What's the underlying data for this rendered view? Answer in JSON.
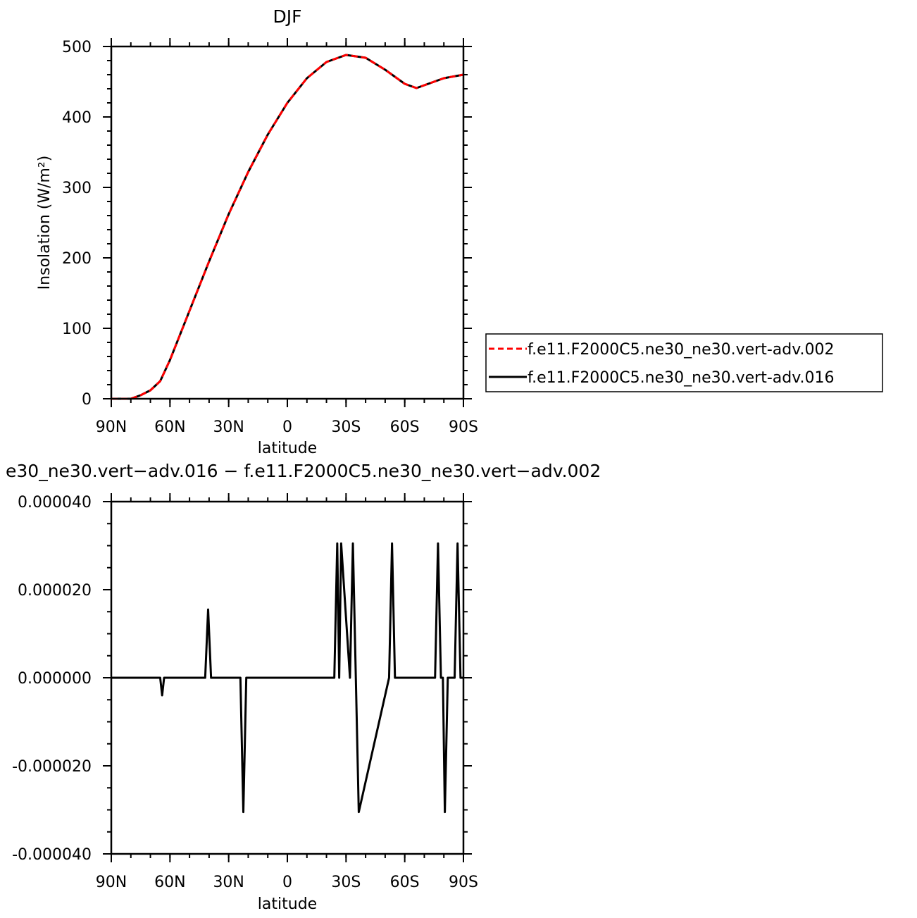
{
  "chart_data": [
    {
      "type": "line",
      "title": "DJF",
      "xlabel": "latitude",
      "ylabel": "Insolation  (W/m²)",
      "xlim": [
        -90,
        90
      ],
      "ylim": [
        0,
        500
      ],
      "xticks": [
        -90,
        -60,
        -30,
        0,
        30,
        60,
        90
      ],
      "xtick_labels": [
        "90N",
        "60N",
        "30N",
        "0",
        "30S",
        "60S",
        "90S"
      ],
      "yticks": [
        0,
        100,
        200,
        300,
        400,
        500
      ],
      "ytick_labels": [
        "0",
        "100",
        "200",
        "300",
        "400",
        "500"
      ],
      "legend": "right",
      "series": [
        {
          "name": "f.e11.F2000C5.ne30_ne30.vert-adv.002",
          "color": "#ff0000",
          "dash": "dashed",
          "x": [
            -90,
            -80,
            -75,
            -70,
            -65,
            -60,
            -50,
            -40,
            -30,
            -20,
            -10,
            0,
            10,
            20,
            30,
            40,
            50,
            60,
            66,
            70,
            80,
            90
          ],
          "values": [
            0,
            0,
            5,
            12,
            25,
            55,
            125,
            195,
            262,
            322,
            375,
            420,
            455,
            478,
            488,
            484,
            467,
            447,
            441,
            445,
            455,
            460
          ]
        },
        {
          "name": "f.e11.F2000C5.ne30_ne30.vert-adv.016",
          "color": "#000000",
          "dash": "solid",
          "x": [
            -90,
            -80,
            -75,
            -70,
            -65,
            -60,
            -50,
            -40,
            -30,
            -20,
            -10,
            0,
            10,
            20,
            30,
            40,
            50,
            60,
            66,
            70,
            80,
            90
          ],
          "values": [
            0,
            0,
            5,
            12,
            25,
            55,
            125,
            195,
            262,
            322,
            375,
            420,
            455,
            478,
            488,
            484,
            467,
            447,
            441,
            445,
            455,
            460
          ]
        }
      ]
    },
    {
      "type": "line",
      "title": "e30_ne30.vert−adv.016 − f.e11.F2000C5.ne30_ne30.vert−adv.002",
      "xlabel": "latitude",
      "ylabel": "",
      "xlim": [
        -90,
        90
      ],
      "ylim": [
        -4e-05,
        4e-05
      ],
      "xticks": [
        -90,
        -60,
        -30,
        0,
        30,
        60,
        90
      ],
      "xtick_labels": [
        "90N",
        "60N",
        "30N",
        "0",
        "30S",
        "60S",
        "90S"
      ],
      "yticks": [
        -4e-05,
        -2e-05,
        0,
        2e-05,
        4e-05
      ],
      "ytick_labels": [
        "-0.000040",
        "-0.000020",
        "0.000000",
        "0.000020",
        "0.000040"
      ],
      "series": [
        {
          "color": "#000000",
          "x": [
            -90,
            -65,
            -64,
            -63,
            -42,
            -40.5,
            -39,
            -24,
            -22.5,
            -21,
            24,
            25.5,
            26.5,
            27.5,
            32,
            33.5,
            35,
            36.5,
            52,
            53.5,
            55,
            75.5,
            77,
            78.5,
            79.5,
            80.5,
            82,
            85.5,
            87,
            88.5,
            90
          ],
          "values": [
            0,
            0,
            -4e-06,
            0,
            0,
            1.55e-05,
            0,
            0,
            -3.05e-05,
            0,
            0,
            3.05e-05,
            0,
            3.05e-05,
            0,
            3.05e-05,
            0,
            -3.05e-05,
            0,
            3.05e-05,
            0,
            0,
            3.05e-05,
            0,
            0,
            -3.05e-05,
            0,
            0,
            3.05e-05,
            0,
            0
          ]
        }
      ]
    }
  ]
}
